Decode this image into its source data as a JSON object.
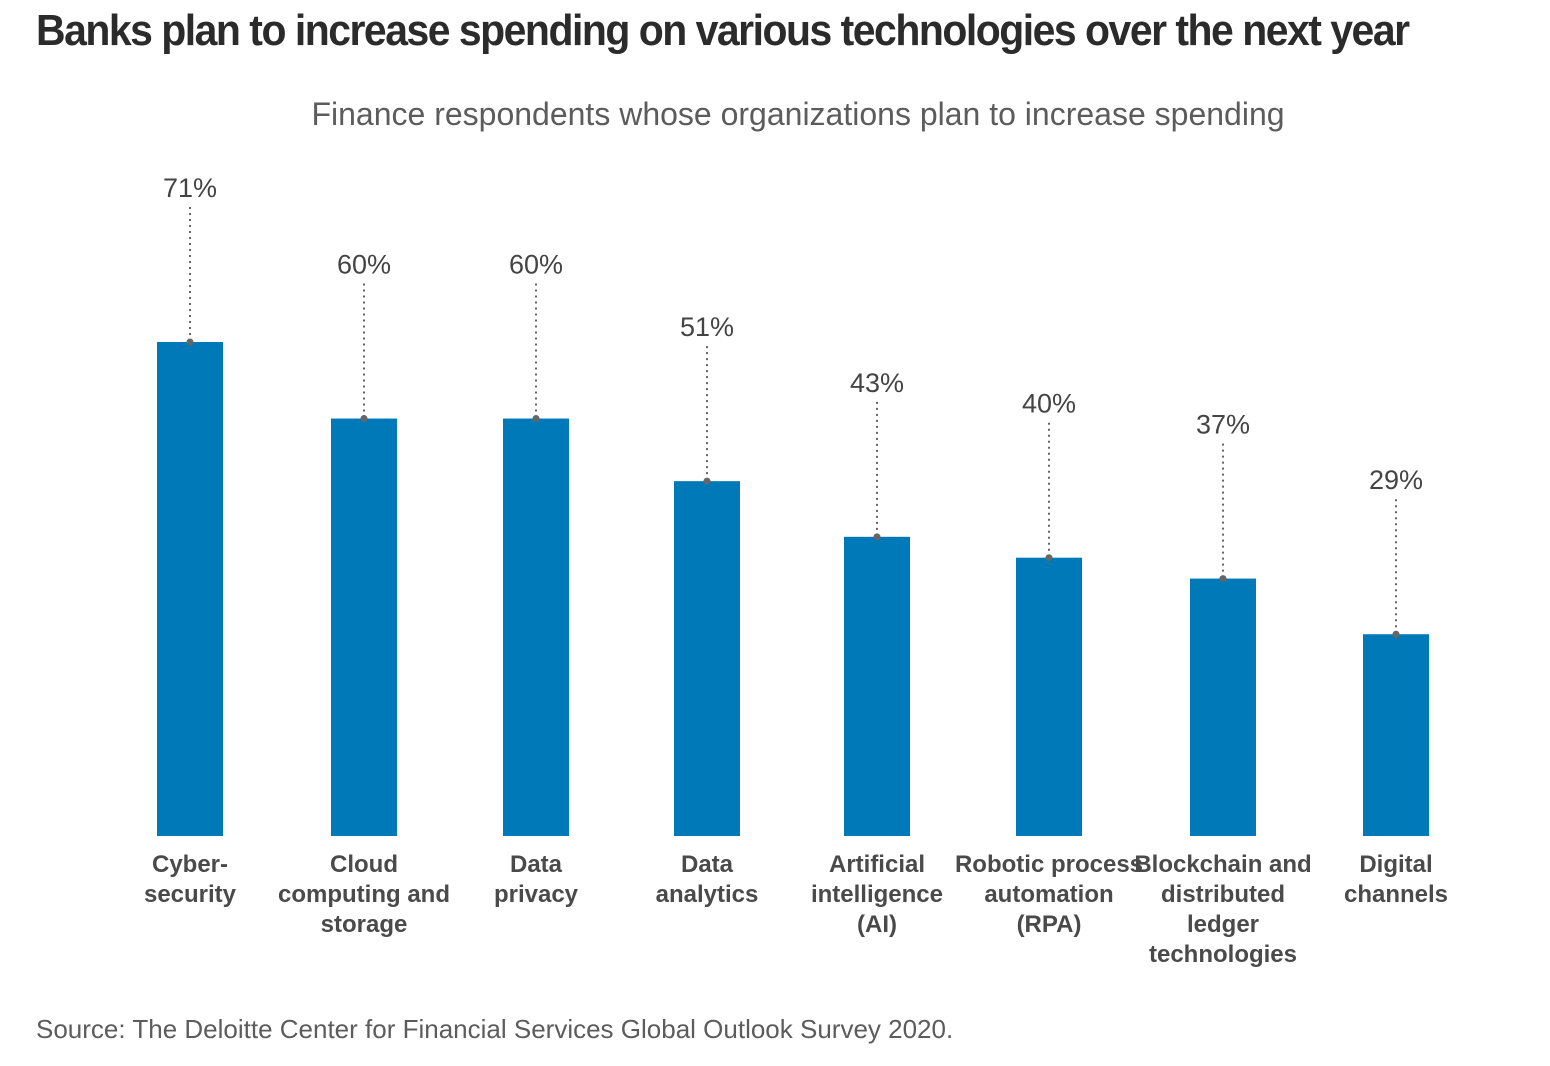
{
  "chart_data": {
    "type": "bar",
    "title": "Banks plan to increase spending on various technologies over the next year",
    "subtitle": "Finance respondents whose organizations plan to increase spending",
    "categories": [
      "Cyber-\nsecurity",
      "Cloud\ncomputing and\nstorage",
      "Data\nprivacy",
      "Data\nanalytics",
      "Artificial\nintelligence\n(AI)",
      "Robotic process\nautomation\n(RPA)",
      "Blockchain and\ndistributed\nledger\ntechnologies",
      "Digital\nchannels"
    ],
    "values": [
      71,
      60,
      60,
      51,
      43,
      40,
      37,
      29
    ],
    "value_labels": [
      "71%",
      "60%",
      "60%",
      "51%",
      "43%",
      "40%",
      "37%",
      "29%"
    ],
    "xlabel": "",
    "ylabel": "",
    "ylim": [
      0,
      71
    ],
    "grid": false,
    "legend": "none",
    "colors": {
      "bar": "#0079B8",
      "leader": "#666666",
      "title": "#2b2b2b",
      "text": "#5c5c5c",
      "category": "#4a4a4a"
    },
    "source": "Source: The Deloitte Center for Financial Services Global Outlook Survey 2020."
  }
}
